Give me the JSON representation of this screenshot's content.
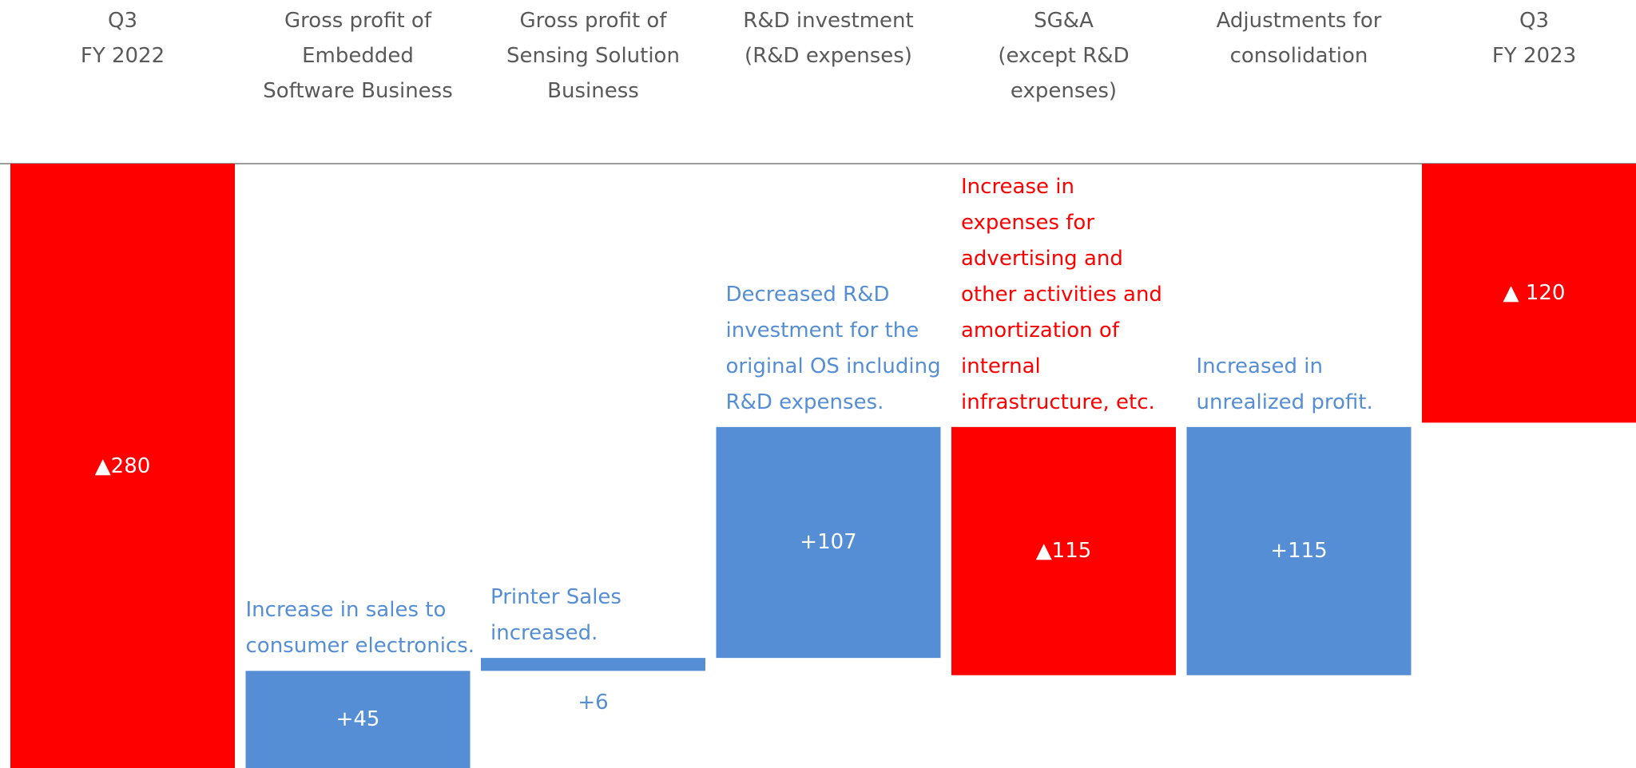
{
  "chart_data": {
    "type": "waterfall",
    "categories": [
      "Q3\nFY 2022",
      "Gross profit of\nEmbedded\nSoftware Business",
      "Gross profit of\nSensing Solution\nBusiness",
      "R&D investment\n(R&D expenses)",
      "SG&A\n(except R&D\nexpenses)",
      "Adjustments for\nconsolidation",
      "Q3\nFY 2023"
    ],
    "values": [
      -280,
      45,
      6,
      107,
      -115,
      115,
      -120
    ],
    "value_labels": [
      "▲280",
      "+45",
      "+6",
      "+107",
      "▲115",
      "+115",
      "▲ 120"
    ],
    "annotations": [
      null,
      "Increase in sales to\nconsumer electronics.",
      "Printer Sales\nincreased.",
      "Decreased R&D\ninvestment for the\noriginal OS including\nR&D expenses.",
      "Increase in\nexpenses for\nadvertising and\nother activities and\namortization of\ninternal\ninfrastructure, etc.",
      "Increased in\nunrealized profit.",
      null
    ],
    "positive_color": "#558ed5",
    "negative_color": "#ff0000"
  }
}
